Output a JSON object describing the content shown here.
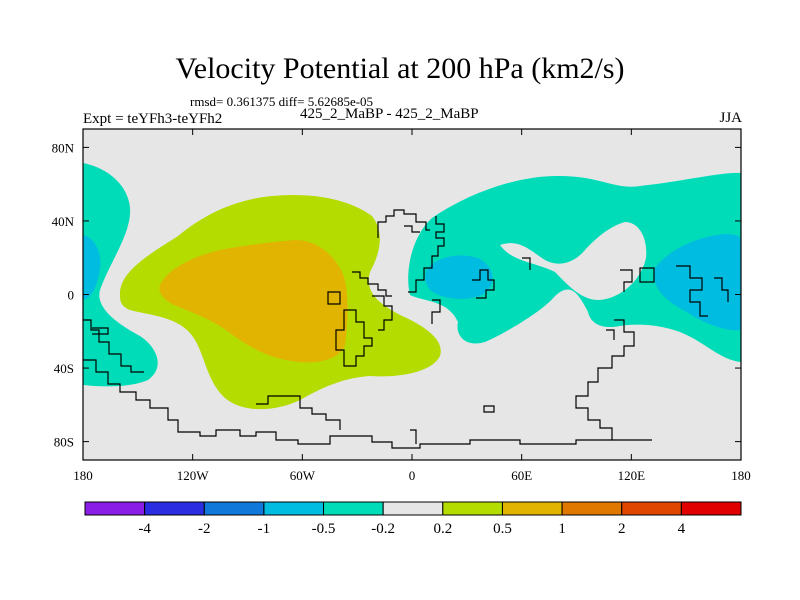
{
  "chart_data": {
    "type": "map-contour",
    "title": "Velocity Potential at 200 hPa (km2/s)",
    "stats_line": "rmsd= 0.361375 diff= 5.62685e-05",
    "left_label": "Expt = teYFh3-teYFh2",
    "center_label": "425_2_MaBP - 425_2_MaBP",
    "right_label": "JJA",
    "x_range": [
      -180,
      180
    ],
    "y_range": [
      -90,
      90
    ],
    "x_ticks": [
      {
        "value": -180,
        "label": "180"
      },
      {
        "value": -120,
        "label": "120W"
      },
      {
        "value": -60,
        "label": "60W"
      },
      {
        "value": 0,
        "label": "0"
      },
      {
        "value": 60,
        "label": "60E"
      },
      {
        "value": 120,
        "label": "120E"
      },
      {
        "value": 180,
        "label": "180"
      }
    ],
    "y_ticks": [
      {
        "value": 80,
        "label": "80N"
      },
      {
        "value": 40,
        "label": "40N"
      },
      {
        "value": 0,
        "label": "0"
      },
      {
        "value": -40,
        "label": "40S"
      },
      {
        "value": -80,
        "label": "80S"
      }
    ],
    "colorbar": {
      "labels": [
        "-4",
        "-2",
        "-1",
        "-0.5",
        "-0.2",
        "0.2",
        "0.5",
        "1",
        "2",
        "4"
      ],
      "colors": [
        "#8a1ee6",
        "#2a2ee0",
        "#0f78d8",
        "#00bce0",
        "#00dcb8",
        "#e6e6e6",
        "#b4dc00",
        "#e0b400",
        "#e07800",
        "#e04600",
        "#e00000"
      ]
    },
    "field_colors": {
      "background": "#e6e6e6",
      "neg_weak": "#00dcb8",
      "neg_mod": "#00bce0",
      "pos_weak": "#b4dc00",
      "pos_mod": "#e0b400"
    },
    "regions": [
      {
        "class": "-0.5 to -0.2",
        "center": "western Pacific / Maritime Continent"
      },
      {
        "class": "-1 to -0.5",
        "center": "western Pacific near 150E"
      },
      {
        "class": "0.5 to 1",
        "center": "eastern Pacific / tropical Americas"
      }
    ]
  }
}
